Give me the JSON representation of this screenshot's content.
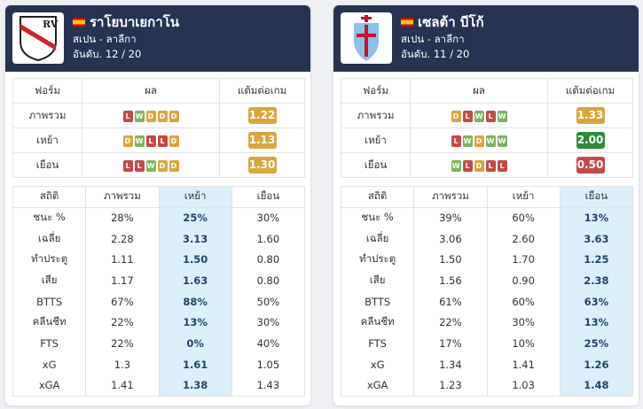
{
  "teams": [
    {
      "name": "ราโยบาเยกาโน",
      "league": "สเปน - ลาลีกา",
      "rank": "อันดับ. 12 / 20",
      "logo_text": "RVM",
      "form_header": {
        "form": "ฟอร์ม",
        "result": "ผล",
        "ppg": "แต้มต่อเกม"
      },
      "form_rows": [
        {
          "label": "ภาพรวม",
          "results": [
            "L",
            "W",
            "D",
            "D",
            "D"
          ],
          "ppg": "1.22",
          "ppg_color": "#d9a63c"
        },
        {
          "label": "เหย้า",
          "results": [
            "D",
            "W",
            "L",
            "L",
            "D"
          ],
          "ppg": "1.13",
          "ppg_color": "#d9a63c"
        },
        {
          "label": "เยือน",
          "results": [
            "L",
            "L",
            "W",
            "D",
            "D"
          ],
          "ppg": "1.30",
          "ppg_color": "#d9a63c"
        }
      ],
      "stats_header": [
        "สถิติ",
        "ภาพรวม",
        "เหย้า",
        "เยือน"
      ],
      "highlight_col": 2,
      "stats_rows": [
        [
          "ชนะ %",
          "28%",
          "25%",
          "30%"
        ],
        [
          "เฉลี่ย",
          "2.28",
          "3.13",
          "1.60"
        ],
        [
          "ทำประตู",
          "1.11",
          "1.50",
          "0.80"
        ],
        [
          "เสีย",
          "1.17",
          "1.63",
          "0.80"
        ],
        [
          "BTTS",
          "67%",
          "88%",
          "50%"
        ],
        [
          "คลีนชีท",
          "22%",
          "13%",
          "30%"
        ],
        [
          "FTS",
          "22%",
          "0%",
          "40%"
        ],
        [
          "xG",
          "1.3",
          "1.61",
          "1.05"
        ],
        [
          "xGA",
          "1.41",
          "1.38",
          "1.43"
        ]
      ]
    },
    {
      "name": "เซลต้า บีโก้",
      "league": "สเปน - ลาลีกา",
      "rank": "อันดับ. 11 / 20",
      "logo_text": "",
      "form_header": {
        "form": "ฟอร์ม",
        "result": "ผล",
        "ppg": "แต้มต่อเกม"
      },
      "form_rows": [
        {
          "label": "ภาพรวม",
          "results": [
            "D",
            "L",
            "W",
            "L",
            "W"
          ],
          "ppg": "1.33",
          "ppg_color": "#d9a63c"
        },
        {
          "label": "เหย้า",
          "results": [
            "L",
            "W",
            "D",
            "W",
            "W"
          ],
          "ppg": "2.00",
          "ppg_color": "#2e8b3a"
        },
        {
          "label": "เยือน",
          "results": [
            "W",
            "L",
            "D",
            "L",
            "L"
          ],
          "ppg": "0.50",
          "ppg_color": "#c84848"
        }
      ],
      "stats_header": [
        "สถิติ",
        "ภาพรวม",
        "เหย้า",
        "เยือน"
      ],
      "highlight_col": 3,
      "stats_rows": [
        [
          "ชนะ %",
          "39%",
          "60%",
          "13%"
        ],
        [
          "เฉลี่ย",
          "3.06",
          "2.60",
          "3.63"
        ],
        [
          "ทำประตู",
          "1.50",
          "1.70",
          "1.25"
        ],
        [
          "เสีย",
          "1.56",
          "0.90",
          "2.38"
        ],
        [
          "BTTS",
          "61%",
          "60%",
          "63%"
        ],
        [
          "คลีนชีท",
          "22%",
          "30%",
          "13%"
        ],
        [
          "FTS",
          "17%",
          "10%",
          "25%"
        ],
        [
          "xG",
          "1.34",
          "1.41",
          "1.26"
        ],
        [
          "xGA",
          "1.23",
          "1.03",
          "1.48"
        ]
      ]
    }
  ]
}
